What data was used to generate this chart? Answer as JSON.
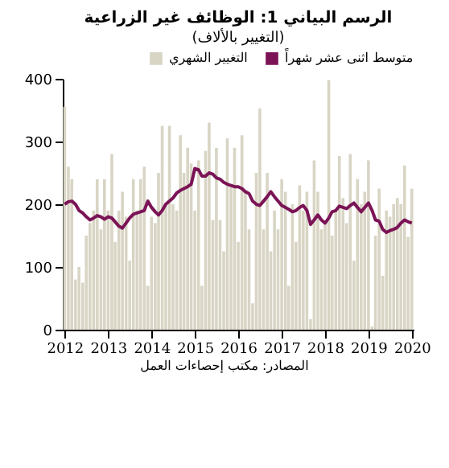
{
  "chart_data": {
    "type": "bar",
    "title": "الرسم البياني 1: الوظائف غير الزراعية",
    "subtitle": "(التغيير بالألاف)",
    "annotations": [
      "المصادر: مكتب إحصاءات العمل"
    ],
    "x": [
      "2012-01",
      "2012-02",
      "2012-03",
      "2012-04",
      "2012-05",
      "2012-06",
      "2012-07",
      "2012-08",
      "2012-09",
      "2012-10",
      "2012-11",
      "2012-12",
      "2013-01",
      "2013-02",
      "2013-03",
      "2013-04",
      "2013-05",
      "2013-06",
      "2013-07",
      "2013-08",
      "2013-09",
      "2013-10",
      "2013-11",
      "2013-12",
      "2014-01",
      "2014-02",
      "2014-03",
      "2014-04",
      "2014-05",
      "2014-06",
      "2014-07",
      "2014-08",
      "2014-09",
      "2014-10",
      "2014-11",
      "2014-12",
      "2015-01",
      "2015-02",
      "2015-03",
      "2015-04",
      "2015-05",
      "2015-06",
      "2015-07",
      "2015-08",
      "2015-09",
      "2015-10",
      "2015-11",
      "2015-12",
      "2016-01",
      "2016-02",
      "2016-03",
      "2016-04",
      "2016-05",
      "2016-06",
      "2016-07",
      "2016-08",
      "2016-09",
      "2016-10",
      "2016-11",
      "2016-12",
      "2017-01",
      "2017-02",
      "2017-03",
      "2017-04",
      "2017-05",
      "2017-06",
      "2017-07",
      "2017-08",
      "2017-09",
      "2017-10",
      "2017-11",
      "2017-12",
      "2018-01",
      "2018-02",
      "2018-03",
      "2018-04",
      "2018-05",
      "2018-06",
      "2018-07",
      "2018-08",
      "2018-09",
      "2018-10",
      "2018-11",
      "2018-12",
      "2019-01",
      "2019-02",
      "2019-03",
      "2019-04",
      "2019-05",
      "2019-06",
      "2019-07",
      "2019-08",
      "2019-09",
      "2019-10",
      "2019-11",
      "2019-12",
      "2020-01"
    ],
    "series": [
      {
        "name": "التغيير الشهري",
        "type": "bar",
        "color": "#d9d5c5",
        "values": [
          355,
          260,
          240,
          80,
          100,
          75,
          150,
          170,
          190,
          240,
          160,
          240,
          190,
          280,
          140,
          190,
          220,
          180,
          110,
          240,
          190,
          240,
          260,
          70,
          180,
          170,
          250,
          325,
          200,
          325,
          200,
          190,
          310,
          250,
          290,
          265,
          190,
          270,
          70,
          285,
          330,
          175,
          290,
          175,
          125,
          305,
          230,
          290,
          140,
          310,
          220,
          160,
          42,
          250,
          353,
          160,
          250,
          125,
          190,
          160,
          240,
          220,
          70,
          200,
          140,
          230,
          190,
          220,
          17,
          270,
          220,
          160,
          170,
          398,
          150,
          190,
          277,
          210,
          170,
          280,
          110,
          240,
          200,
          220,
          270,
          5,
          150,
          225,
          86,
          190,
          180,
          200,
          210,
          200,
          262,
          148,
          225
        ]
      },
      {
        "name": "متوسط اثنى عشر شهراً",
        "type": "line",
        "color": "#7b1456",
        "values": [
          200,
          204,
          205,
          200,
          190,
          186,
          180,
          175,
          178,
          182,
          180,
          176,
          180,
          178,
          172,
          165,
          162,
          170,
          178,
          184,
          186,
          188,
          190,
          205,
          195,
          188,
          183,
          190,
          200,
          205,
          210,
          218,
          222,
          225,
          228,
          232,
          257,
          255,
          245,
          245,
          250,
          248,
          242,
          240,
          235,
          232,
          230,
          228,
          228,
          225,
          220,
          217,
          205,
          200,
          198,
          205,
          212,
          220,
          212,
          205,
          198,
          195,
          192,
          188,
          190,
          195,
          198,
          190,
          168,
          175,
          183,
          175,
          170,
          178,
          188,
          190,
          197,
          195,
          193,
          198,
          202,
          195,
          188,
          195,
          202,
          190,
          175,
          173,
          160,
          155,
          158,
          160,
          163,
          170,
          175,
          172,
          170
        ]
      }
    ],
    "xlim": [
      "2011-12-16",
      "2020-01-16"
    ],
    "xticks": [
      "2012",
      "2013",
      "2014",
      "2015",
      "2016",
      "2017",
      "2018",
      "2019",
      "2020"
    ],
    "ylim": [
      0,
      400
    ],
    "yticks": [
      0,
      100,
      200,
      300,
      400
    ],
    "legend": "top right"
  }
}
